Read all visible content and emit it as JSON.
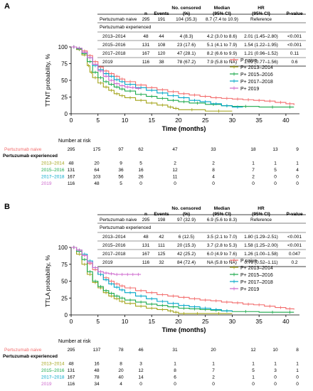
{
  "chart_data": [
    {
      "panel": "A",
      "type": "line",
      "ylabel": "TTNT probability, %",
      "xlabel": "Time (months)",
      "xlim": [
        0,
        42
      ],
      "ylim": [
        0,
        100
      ],
      "xticks": [
        0,
        5,
        10,
        15,
        20,
        25,
        30,
        35,
        40
      ],
      "yticks": [
        0,
        25,
        50,
        75,
        100
      ],
      "legend_position": "right",
      "table": {
        "headers": {
          "n": "n",
          "events": "Events",
          "censored": "No. censored (%)",
          "median": "Median (95% CI)",
          "hr": "HR (95% CI)",
          "p": "P-value"
        },
        "naive": {
          "label": "Pertuzumab naive",
          "n": "295",
          "events": "191",
          "censored": "104 (35.3)",
          "median": "8.7 (7.4 to 10.9)",
          "hr": "Reference",
          "p": ""
        },
        "experienced_label": "Pertuzumab experienced",
        "rows": [
          {
            "label": "2013–2014",
            "n": "48",
            "events": "44",
            "censored": "4 (8.3)",
            "median": "4.2 (3.0 to 8.6)",
            "hr": "2.01 (1.45–2.80)",
            "p": "<0.001"
          },
          {
            "label": "2015–2016",
            "n": "131",
            "events": "108",
            "censored": "23 (17.6)",
            "median": "5.1 (4.1 to 7.9)",
            "hr": "1.54 (1.22–1.95)",
            "p": "<0.001"
          },
          {
            "label": "2017–2018",
            "n": "167",
            "events": "120",
            "censored": "47 (28.1)",
            "median": "8.2 (6.6 to 9.9)",
            "hr": "1.21 (0.96–1.52)",
            "p": "0.11"
          },
          {
            "label": "2019",
            "n": "116",
            "events": "38",
            "censored": "78 (67.2)",
            "median": "7.9 (5.8 to NA)",
            "hr": "1.09 (0.77–1.56)",
            "p": "0.6"
          }
        ]
      },
      "series": [
        {
          "name": "P naive",
          "color": "#f26b6b",
          "x": [
            0,
            1,
            2,
            3,
            4,
            5,
            6,
            7,
            8,
            9,
            10,
            12,
            14,
            16,
            18,
            20,
            22,
            24,
            26,
            28,
            30,
            32,
            34,
            36,
            38,
            40,
            41.5
          ],
          "y": [
            100,
            98,
            94,
            87,
            78,
            70,
            64,
            60,
            56,
            52,
            48,
            43,
            39,
            36,
            33,
            30,
            28,
            26,
            24,
            23,
            22,
            21,
            20,
            19,
            17,
            15,
            13
          ]
        },
        {
          "name": "P+ 2013–2014",
          "color": "#a3a319",
          "x": [
            0,
            1,
            2,
            3,
            3.5,
            4,
            5,
            6,
            7,
            8,
            9,
            10,
            12,
            14,
            16,
            18,
            19,
            20,
            25,
            30
          ],
          "y": [
            100,
            96,
            88,
            72,
            62,
            54,
            46,
            40,
            35,
            30,
            27,
            24,
            20,
            16,
            13,
            10,
            8,
            6,
            4,
            4
          ]
        },
        {
          "name": "P+ 2015–2016",
          "color": "#1aa84a",
          "x": [
            0,
            1,
            2,
            3,
            4,
            5,
            6,
            7,
            8,
            9,
            10,
            12,
            14,
            16,
            18,
            20,
            22,
            25,
            28,
            30,
            35,
            40,
            41.5
          ],
          "y": [
            100,
            97,
            90,
            78,
            62,
            54,
            48,
            44,
            40,
            37,
            34,
            29,
            26,
            23,
            20,
            18,
            16,
            14,
            12,
            11,
            10,
            10,
            10
          ]
        },
        {
          "name": "P+ 2017–2018",
          "color": "#00a6c8",
          "x": [
            0,
            1,
            2,
            3,
            4,
            5,
            6,
            7,
            8,
            9,
            10,
            12,
            14,
            16,
            18,
            20,
            22,
            24,
            26,
            28,
            30,
            32
          ],
          "y": [
            100,
            98,
            92,
            84,
            72,
            66,
            60,
            56,
            51,
            48,
            44,
            39,
            35,
            31,
            27,
            24,
            20,
            18,
            15,
            12,
            10,
            10
          ]
        },
        {
          "name": "P+ 2019",
          "color": "#cc66cc",
          "x": [
            0,
            1,
            2,
            3,
            4,
            5,
            6,
            7,
            8,
            9,
            10,
            11,
            12,
            13
          ],
          "y": [
            100,
            98,
            92,
            84,
            74,
            64,
            56,
            50,
            45,
            42,
            40,
            39,
            38,
            38
          ]
        }
      ],
      "risk_table": {
        "title": "Number at risk",
        "naive_label": "Pertuzumab naive",
        "experienced_label": "Pertuzumab experienced",
        "rows": [
          {
            "label": "Pertuzumab naive",
            "color": "#f26b6b",
            "values": [
              "295",
              "175",
              "97",
              "62",
              "47",
              "33",
              "18",
              "13",
              "9"
            ]
          },
          {
            "label": "2013–2014",
            "color": "#a3a319",
            "values": [
              "48",
              "20",
              "9",
              "5",
              "2",
              "2",
              "1",
              "1",
              "1"
            ]
          },
          {
            "label": "2015–2016",
            "color": "#1aa84a",
            "values": [
              "131",
              "64",
              "36",
              "16",
              "12",
              "8",
              "7",
              "5",
              "4"
            ]
          },
          {
            "label": "2017–2018",
            "color": "#00a6c8",
            "values": [
              "167",
              "103",
              "56",
              "26",
              "11",
              "4",
              "2",
              "0",
              "0"
            ]
          },
          {
            "label": "2019",
            "color": "#cc66cc",
            "values": [
              "116",
              "48",
              "5",
              "0",
              "0",
              "0",
              "0",
              "0",
              "0"
            ]
          }
        ]
      }
    },
    {
      "panel": "B",
      "type": "line",
      "ylabel": "TTLA probability, %",
      "xlabel": "Time (months)",
      "xlim": [
        0,
        42
      ],
      "ylim": [
        0,
        100
      ],
      "xticks": [
        0,
        5,
        10,
        15,
        20,
        25,
        30,
        35,
        40
      ],
      "yticks": [
        0,
        25,
        50,
        75,
        100
      ],
      "legend_position": "right",
      "table": {
        "headers": {
          "n": "n",
          "events": "Events",
          "censored": "No. censored (%)",
          "median": "Median (95% CI)",
          "hr": "HR (95% CI)",
          "p": "P-value"
        },
        "naive": {
          "label": "Pertuzumab naive",
          "n": "295",
          "events": "198",
          "censored": "97 (32.9)",
          "median": "6.9 (5.6 to 8.3)",
          "hr": "Reference",
          "p": ""
        },
        "experienced_label": "Pertuzumab experienced",
        "rows": [
          {
            "label": "2013–2014",
            "n": "48",
            "events": "42",
            "censored": "6 (12.5)",
            "median": "3.5 (2.1 to 7.0)",
            "hr": "1.80 (1.29–2.51)",
            "p": "<0.001"
          },
          {
            "label": "2015–2016",
            "n": "131",
            "events": "111",
            "censored": "20 (15.3)",
            "median": "3.7 (2.8 to 5.3)",
            "hr": "1.58 (1.25–2.00)",
            "p": "<0.001"
          },
          {
            "label": "2017–2018",
            "n": "167",
            "events": "125",
            "censored": "42 (25.2)",
            "median": "6.0 (4.9 to 7.6)",
            "hr": "1.26 (1.00–1.58)",
            "p": "0.047"
          },
          {
            "label": "2019",
            "n": "116",
            "events": "32",
            "censored": "84 (72.4)",
            "median": "NA (5.8 to NA)",
            "hr": "0.76 (0.52–1.11)",
            "p": "0.2"
          }
        ]
      },
      "series": [
        {
          "name": "P naive",
          "color": "#f26b6b",
          "x": [
            0,
            1,
            2,
            3,
            4,
            5,
            6,
            7,
            8,
            9,
            10,
            12,
            14,
            16,
            18,
            20,
            22,
            24,
            26,
            28,
            30,
            32,
            34,
            36,
            38,
            40,
            41.5
          ],
          "y": [
            100,
            96,
            88,
            76,
            67,
            60,
            55,
            50,
            46,
            43,
            40,
            36,
            33,
            30,
            28,
            26,
            24,
            22,
            21,
            19,
            18,
            16,
            15,
            13,
            11,
            9,
            8
          ]
        },
        {
          "name": "P+ 2013–2014",
          "color": "#a3a319",
          "x": [
            0,
            1,
            2,
            3,
            4,
            5,
            6,
            7,
            8,
            9,
            10,
            12,
            14,
            16,
            18,
            19,
            20,
            22,
            25,
            30
          ],
          "y": [
            100,
            90,
            75,
            60,
            48,
            40,
            33,
            28,
            24,
            20,
            17,
            13,
            10,
            8,
            6,
            4,
            2,
            2,
            2,
            2
          ]
        },
        {
          "name": "P+ 2015–2016",
          "color": "#1aa84a",
          "x": [
            0,
            1,
            2,
            3,
            4,
            5,
            6,
            7,
            8,
            9,
            10,
            12,
            14,
            16,
            18,
            20,
            22,
            24,
            26,
            28,
            30,
            35,
            40,
            41.5
          ],
          "y": [
            100,
            94,
            82,
            64,
            50,
            42,
            36,
            32,
            28,
            25,
            22,
            19,
            16,
            14,
            12,
            10,
            9,
            8,
            7,
            6,
            5,
            4,
            4,
            4
          ]
        },
        {
          "name": "P+ 2017–2018",
          "color": "#00a6c8",
          "x": [
            0,
            1,
            2,
            3,
            4,
            5,
            6,
            7,
            8,
            9,
            10,
            12,
            14,
            16,
            18,
            20,
            22,
            24,
            26,
            28,
            30
          ],
          "y": [
            100,
            96,
            90,
            80,
            70,
            60,
            52,
            46,
            41,
            37,
            33,
            28,
            24,
            20,
            17,
            14,
            12,
            10,
            8,
            6,
            5
          ]
        },
        {
          "name": "P+ 2019",
          "color": "#cc66cc",
          "x": [
            0,
            1,
            2,
            3,
            4,
            5,
            6,
            7,
            8,
            9,
            10,
            11,
            12,
            13
          ],
          "y": [
            100,
            96,
            88,
            78,
            70,
            64,
            62,
            61,
            60,
            60,
            60,
            60,
            60,
            60
          ]
        }
      ],
      "risk_table": {
        "title": "Number at risk",
        "naive_label": "Pertuzumab naive",
        "experienced_label": "Pertuzumab experienced",
        "rows": [
          {
            "label": "Pertuzumab naive",
            "color": "#f26b6b",
            "values": [
              "295",
              "137",
              "78",
              "46",
              "31",
              "20",
              "12",
              "10",
              "8"
            ]
          },
          {
            "label": "2013–2014",
            "color": "#a3a319",
            "values": [
              "48",
              "16",
              "8",
              "3",
              "1",
              "1",
              "1",
              "1",
              "1"
            ]
          },
          {
            "label": "2015–2016",
            "color": "#1aa84a",
            "values": [
              "131",
              "48",
              "20",
              "12",
              "8",
              "7",
              "5",
              "3",
              "1"
            ]
          },
          {
            "label": "2017–2018",
            "color": "#00a6c8",
            "values": [
              "167",
              "78",
              "40",
              "14",
              "6",
              "2",
              "1",
              "0",
              "0"
            ]
          },
          {
            "label": "2019",
            "color": "#cc66cc",
            "values": [
              "116",
              "34",
              "4",
              "0",
              "0",
              "0",
              "0",
              "0",
              "0"
            ]
          }
        ]
      }
    }
  ]
}
